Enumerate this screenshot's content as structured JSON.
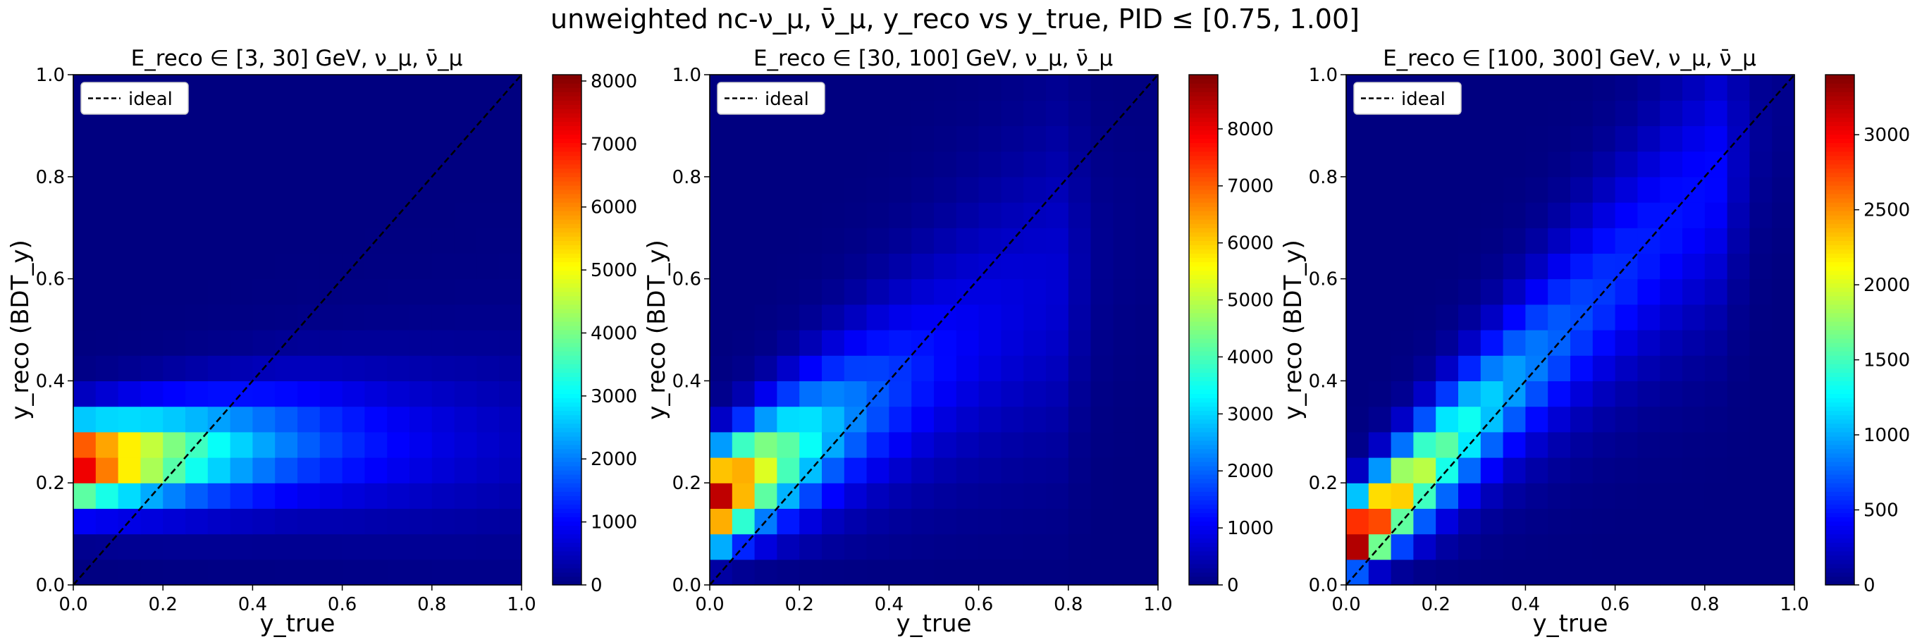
{
  "figure": {
    "suptitle": "unweighted nc-ν_μ, ν̄_μ, y_reco vs  y_true, PID ≤ [0.75, 1.00]"
  },
  "chart_data": [
    {
      "type": "heatmap",
      "title": "E_reco ∈ [3, 30] GeV, ν_μ, ν̄_μ",
      "xlabel": "y_true",
      "ylabel": "y_reco (BDT_y)",
      "xlim": [
        0,
        1
      ],
      "ylim": [
        0,
        1
      ],
      "bins": 20,
      "xticks": [
        "0.0",
        "0.2",
        "0.4",
        "0.6",
        "0.8",
        "1.0"
      ],
      "yticks": [
        "0.0",
        "0.2",
        "0.4",
        "0.6",
        "0.8",
        "1.0"
      ],
      "legend": {
        "entry": "ideal",
        "location": "upper left",
        "style": "dashed black diagonal y=x"
      },
      "colormap": "jet",
      "colorbar": {
        "min": 0,
        "max": 8100,
        "ticks": [
          "0",
          "1000",
          "2000",
          "3000",
          "4000",
          "5000",
          "6000",
          "7000",
          "8000"
        ]
      },
      "model": {
        "type": "band",
        "yc": 0.24,
        "sy_base": 0.055,
        "sy_grow": 0.06,
        "amp": 8000,
        "xdecay": 0.33,
        "floor": 120,
        "shift": 0.08
      }
    },
    {
      "type": "heatmap",
      "title": "E_reco ∈ [30, 100] GeV, ν_μ, ν̄_μ",
      "xlabel": "y_true",
      "ylabel": "y_reco (BDT_y)",
      "xlim": [
        0,
        1
      ],
      "ylim": [
        0,
        1
      ],
      "bins": 20,
      "xticks": [
        "0.0",
        "0.2",
        "0.4",
        "0.6",
        "0.8",
        "1.0"
      ],
      "yticks": [
        "0.0",
        "0.2",
        "0.4",
        "0.6",
        "0.8",
        "1.0"
      ],
      "legend": {
        "entry": "ideal",
        "location": "upper left",
        "style": "dashed black diagonal y=x"
      },
      "colormap": "jet",
      "colorbar": {
        "min": 0,
        "max": 8950,
        "ticks": [
          "0",
          "1000",
          "2000",
          "3000",
          "4000",
          "5000",
          "6000",
          "7000",
          "8000"
        ]
      },
      "model": {
        "type": "ridge",
        "slope": 0.55,
        "offset": 0.16,
        "sy_base": 0.06,
        "sy_grow": 0.12,
        "amp": 8900,
        "xdecay": 0.2,
        "floor": 60,
        "xcut": 0.8
      }
    },
    {
      "type": "heatmap",
      "title": "E_reco ∈ [100, 300] GeV, ν_μ, ν̄_μ",
      "xlabel": "y_true",
      "ylabel": "y_reco (BDT_y)",
      "xlim": [
        0,
        1
      ],
      "ylim": [
        0,
        1
      ],
      "bins": 20,
      "xticks": [
        "0.0",
        "0.2",
        "0.4",
        "0.6",
        "0.8",
        "1.0"
      ],
      "yticks": [
        "0.0",
        "0.2",
        "0.4",
        "0.6",
        "0.8",
        "1.0"
      ],
      "legend": {
        "entry": "ideal",
        "location": "upper left",
        "style": "dashed black diagonal y=x"
      },
      "colormap": "jet",
      "colorbar": {
        "min": 0,
        "max": 3400,
        "ticks": [
          "0",
          "500",
          "1000",
          "1500",
          "2000",
          "2500",
          "3000"
        ]
      },
      "model": {
        "type": "ridge",
        "slope": 0.88,
        "offset": 0.07,
        "sy_base": 0.05,
        "sy_grow": 0.09,
        "amp": 3400,
        "xdecay": 0.22,
        "floor": 40,
        "xcut": 0.85
      }
    }
  ]
}
